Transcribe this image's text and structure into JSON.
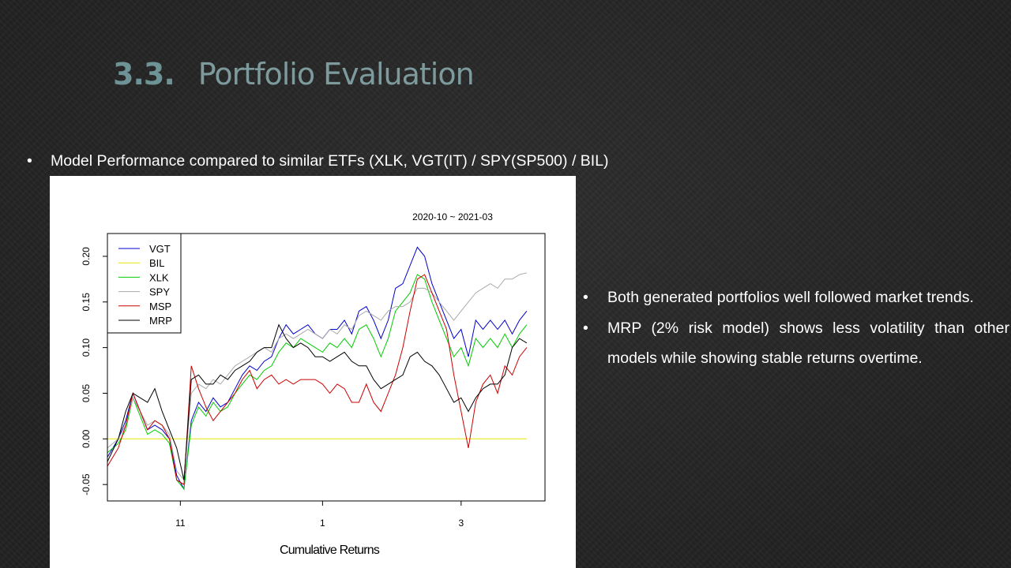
{
  "slide": {
    "section_number": "3.3.",
    "title": "Portfolio Evaluation",
    "bullet_main": "Model Performance compared to similar ETFs (XLK, VGT(IT)  / SPY(SP500) / BIL)",
    "bullet_symbol": "•",
    "side_points": [
      "Both generated portfolios well followed market trends.",
      "MRP (2% risk model) shows less volatility than other models while showing stable returns overtime."
    ]
  },
  "chart_data": {
    "type": "line",
    "title": "2020-10 ~ 2021-03",
    "xlabel": "Cumulative Returns",
    "ylabel": "",
    "x_ticks": [
      {
        "label": "11",
        "x": 20
      },
      {
        "label": "1",
        "x": 59
      },
      {
        "label": "3",
        "x": 97
      }
    ],
    "y_ticks": [
      -0.05,
      0.0,
      0.05,
      0.1,
      0.15,
      0.2
    ],
    "xlim": [
      0,
      120
    ],
    "ylim": [
      -0.068,
      0.225
    ],
    "grid": false,
    "legend_position": "top-left",
    "series": [
      {
        "name": "VGT",
        "color": "#0000cc",
        "points": [
          [
            0,
            -0.02
          ],
          [
            3,
            0.0
          ],
          [
            5,
            0.02
          ],
          [
            7,
            0.05
          ],
          [
            9,
            0.03
          ],
          [
            11,
            0.01
          ],
          [
            13,
            0.015
          ],
          [
            15,
            0.01
          ],
          [
            17,
            0.0
          ],
          [
            19,
            -0.04
          ],
          [
            21,
            -0.055
          ],
          [
            23,
            0.02
          ],
          [
            25,
            0.04
          ],
          [
            27,
            0.03
          ],
          [
            29,
            0.045
          ],
          [
            31,
            0.035
          ],
          [
            33,
            0.04
          ],
          [
            35,
            0.055
          ],
          [
            37,
            0.07
          ],
          [
            39,
            0.08
          ],
          [
            41,
            0.075
          ],
          [
            43,
            0.085
          ],
          [
            45,
            0.09
          ],
          [
            47,
            0.11
          ],
          [
            49,
            0.125
          ],
          [
            51,
            0.115
          ],
          [
            53,
            0.12
          ],
          [
            55,
            0.125
          ],
          [
            57,
            0.115
          ],
          [
            59,
            0.11
          ],
          [
            61,
            0.12
          ],
          [
            63,
            0.12
          ],
          [
            65,
            0.13
          ],
          [
            67,
            0.115
          ],
          [
            69,
            0.14
          ],
          [
            71,
            0.145
          ],
          [
            73,
            0.13
          ],
          [
            75,
            0.11
          ],
          [
            77,
            0.13
          ],
          [
            79,
            0.165
          ],
          [
            81,
            0.17
          ],
          [
            83,
            0.19
          ],
          [
            85,
            0.21
          ],
          [
            87,
            0.2
          ],
          [
            89,
            0.17
          ],
          [
            91,
            0.15
          ],
          [
            93,
            0.13
          ],
          [
            95,
            0.11
          ],
          [
            97,
            0.12
          ],
          [
            99,
            0.09
          ],
          [
            101,
            0.13
          ],
          [
            103,
            0.12
          ],
          [
            105,
            0.13
          ],
          [
            107,
            0.12
          ],
          [
            109,
            0.13
          ],
          [
            111,
            0.115
          ],
          [
            113,
            0.13
          ],
          [
            115,
            0.14
          ]
        ]
      },
      {
        "name": "BIL",
        "color": "#e5e500",
        "points": [
          [
            0,
            0.0
          ],
          [
            115,
            0.0
          ]
        ]
      },
      {
        "name": "XLK",
        "color": "#00cc00",
        "points": [
          [
            0,
            -0.015
          ],
          [
            3,
            -0.005
          ],
          [
            5,
            0.01
          ],
          [
            7,
            0.045
          ],
          [
            9,
            0.025
          ],
          [
            11,
            0.005
          ],
          [
            13,
            0.01
          ],
          [
            15,
            0.005
          ],
          [
            17,
            -0.005
          ],
          [
            19,
            -0.045
          ],
          [
            21,
            -0.055
          ],
          [
            23,
            0.015
          ],
          [
            25,
            0.035
          ],
          [
            27,
            0.025
          ],
          [
            29,
            0.04
          ],
          [
            31,
            0.03
          ],
          [
            33,
            0.035
          ],
          [
            35,
            0.05
          ],
          [
            37,
            0.06
          ],
          [
            39,
            0.07
          ],
          [
            41,
            0.065
          ],
          [
            43,
            0.075
          ],
          [
            45,
            0.08
          ],
          [
            47,
            0.095
          ],
          [
            49,
            0.105
          ],
          [
            51,
            0.1
          ],
          [
            53,
            0.11
          ],
          [
            55,
            0.105
          ],
          [
            57,
            0.1
          ],
          [
            59,
            0.095
          ],
          [
            61,
            0.105
          ],
          [
            63,
            0.1
          ],
          [
            65,
            0.11
          ],
          [
            67,
            0.1
          ],
          [
            69,
            0.12
          ],
          [
            71,
            0.125
          ],
          [
            73,
            0.11
          ],
          [
            75,
            0.09
          ],
          [
            77,
            0.11
          ],
          [
            79,
            0.14
          ],
          [
            81,
            0.15
          ],
          [
            83,
            0.16
          ],
          [
            85,
            0.18
          ],
          [
            87,
            0.175
          ],
          [
            89,
            0.15
          ],
          [
            91,
            0.13
          ],
          [
            93,
            0.11
          ],
          [
            95,
            0.09
          ],
          [
            97,
            0.1
          ],
          [
            99,
            0.08
          ],
          [
            101,
            0.11
          ],
          [
            103,
            0.1
          ],
          [
            105,
            0.11
          ],
          [
            107,
            0.1
          ],
          [
            109,
            0.115
          ],
          [
            111,
            0.1
          ],
          [
            113,
            0.115
          ],
          [
            115,
            0.125
          ]
        ]
      },
      {
        "name": "SPY",
        "color": "#aaaaaa",
        "points": [
          [
            0,
            -0.01
          ],
          [
            3,
            0.0
          ],
          [
            5,
            0.015
          ],
          [
            7,
            0.045
          ],
          [
            9,
            0.03
          ],
          [
            11,
            0.015
          ],
          [
            13,
            0.02
          ],
          [
            15,
            0.015
          ],
          [
            17,
            0.005
          ],
          [
            19,
            -0.035
          ],
          [
            21,
            -0.045
          ],
          [
            23,
            0.05
          ],
          [
            25,
            0.06
          ],
          [
            27,
            0.055
          ],
          [
            29,
            0.065
          ],
          [
            31,
            0.06
          ],
          [
            33,
            0.07
          ],
          [
            35,
            0.08
          ],
          [
            37,
            0.085
          ],
          [
            39,
            0.09
          ],
          [
            41,
            0.095
          ],
          [
            43,
            0.1
          ],
          [
            45,
            0.095
          ],
          [
            47,
            0.11
          ],
          [
            49,
            0.115
          ],
          [
            51,
            0.11
          ],
          [
            53,
            0.115
          ],
          [
            55,
            0.12
          ],
          [
            57,
            0.115
          ],
          [
            59,
            0.11
          ],
          [
            61,
            0.12
          ],
          [
            63,
            0.115
          ],
          [
            65,
            0.125
          ],
          [
            67,
            0.12
          ],
          [
            69,
            0.135
          ],
          [
            71,
            0.14
          ],
          [
            73,
            0.135
          ],
          [
            75,
            0.13
          ],
          [
            77,
            0.14
          ],
          [
            79,
            0.145
          ],
          [
            81,
            0.145
          ],
          [
            83,
            0.15
          ],
          [
            85,
            0.165
          ],
          [
            87,
            0.165
          ],
          [
            89,
            0.16
          ],
          [
            91,
            0.15
          ],
          [
            93,
            0.14
          ],
          [
            95,
            0.13
          ],
          [
            97,
            0.14
          ],
          [
            99,
            0.15
          ],
          [
            101,
            0.16
          ],
          [
            103,
            0.165
          ],
          [
            105,
            0.17
          ],
          [
            107,
            0.165
          ],
          [
            109,
            0.175
          ],
          [
            111,
            0.175
          ],
          [
            113,
            0.18
          ],
          [
            115,
            0.182
          ]
        ]
      },
      {
        "name": "MSP",
        "color": "#cc0000",
        "points": [
          [
            0,
            -0.03
          ],
          [
            3,
            -0.01
          ],
          [
            5,
            0.015
          ],
          [
            7,
            0.05
          ],
          [
            9,
            0.03
          ],
          [
            11,
            0.01
          ],
          [
            13,
            0.02
          ],
          [
            15,
            0.015
          ],
          [
            17,
            0.0
          ],
          [
            19,
            -0.045
          ],
          [
            21,
            -0.05
          ],
          [
            23,
            0.08
          ],
          [
            25,
            0.055
          ],
          [
            27,
            0.035
          ],
          [
            29,
            0.02
          ],
          [
            31,
            0.03
          ],
          [
            33,
            0.04
          ],
          [
            35,
            0.05
          ],
          [
            37,
            0.065
          ],
          [
            39,
            0.075
          ],
          [
            41,
            0.055
          ],
          [
            43,
            0.065
          ],
          [
            45,
            0.07
          ],
          [
            47,
            0.06
          ],
          [
            49,
            0.065
          ],
          [
            51,
            0.06
          ],
          [
            53,
            0.065
          ],
          [
            55,
            0.065
          ],
          [
            57,
            0.065
          ],
          [
            59,
            0.06
          ],
          [
            61,
            0.05
          ],
          [
            63,
            0.06
          ],
          [
            65,
            0.055
          ],
          [
            67,
            0.04
          ],
          [
            69,
            0.04
          ],
          [
            71,
            0.06
          ],
          [
            73,
            0.04
          ],
          [
            75,
            0.03
          ],
          [
            77,
            0.05
          ],
          [
            79,
            0.07
          ],
          [
            81,
            0.1
          ],
          [
            83,
            0.14
          ],
          [
            85,
            0.175
          ],
          [
            87,
            0.18
          ],
          [
            89,
            0.16
          ],
          [
            91,
            0.14
          ],
          [
            93,
            0.12
          ],
          [
            95,
            0.07
          ],
          [
            97,
            0.03
          ],
          [
            99,
            -0.01
          ],
          [
            101,
            0.04
          ],
          [
            103,
            0.06
          ],
          [
            105,
            0.07
          ],
          [
            107,
            0.05
          ],
          [
            109,
            0.08
          ],
          [
            111,
            0.07
          ],
          [
            113,
            0.09
          ],
          [
            115,
            0.1
          ]
        ]
      },
      {
        "name": "MRP",
        "color": "#000000",
        "points": [
          [
            0,
            -0.025
          ],
          [
            3,
            0.0
          ],
          [
            5,
            0.03
          ],
          [
            7,
            0.05
          ],
          [
            9,
            0.045
          ],
          [
            11,
            0.04
          ],
          [
            13,
            0.055
          ],
          [
            15,
            0.03
          ],
          [
            17,
            0.01
          ],
          [
            19,
            -0.01
          ],
          [
            21,
            -0.045
          ],
          [
            23,
            0.065
          ],
          [
            25,
            0.07
          ],
          [
            27,
            0.06
          ],
          [
            29,
            0.06
          ],
          [
            31,
            0.07
          ],
          [
            33,
            0.065
          ],
          [
            35,
            0.075
          ],
          [
            37,
            0.08
          ],
          [
            39,
            0.085
          ],
          [
            41,
            0.095
          ],
          [
            43,
            0.1
          ],
          [
            45,
            0.1
          ],
          [
            47,
            0.125
          ],
          [
            49,
            0.11
          ],
          [
            51,
            0.1
          ],
          [
            53,
            0.105
          ],
          [
            55,
            0.1
          ],
          [
            57,
            0.09
          ],
          [
            59,
            0.09
          ],
          [
            61,
            0.085
          ],
          [
            63,
            0.09
          ],
          [
            65,
            0.095
          ],
          [
            67,
            0.085
          ],
          [
            69,
            0.08
          ],
          [
            71,
            0.08
          ],
          [
            73,
            0.065
          ],
          [
            75,
            0.055
          ],
          [
            77,
            0.06
          ],
          [
            79,
            0.065
          ],
          [
            81,
            0.07
          ],
          [
            83,
            0.09
          ],
          [
            85,
            0.095
          ],
          [
            87,
            0.085
          ],
          [
            89,
            0.08
          ],
          [
            91,
            0.07
          ],
          [
            93,
            0.055
          ],
          [
            95,
            0.04
          ],
          [
            97,
            0.045
          ],
          [
            99,
            0.03
          ],
          [
            101,
            0.045
          ],
          [
            103,
            0.055
          ],
          [
            105,
            0.06
          ],
          [
            107,
            0.06
          ],
          [
            109,
            0.07
          ],
          [
            111,
            0.1
          ],
          [
            113,
            0.11
          ],
          [
            115,
            0.105
          ]
        ]
      }
    ]
  }
}
